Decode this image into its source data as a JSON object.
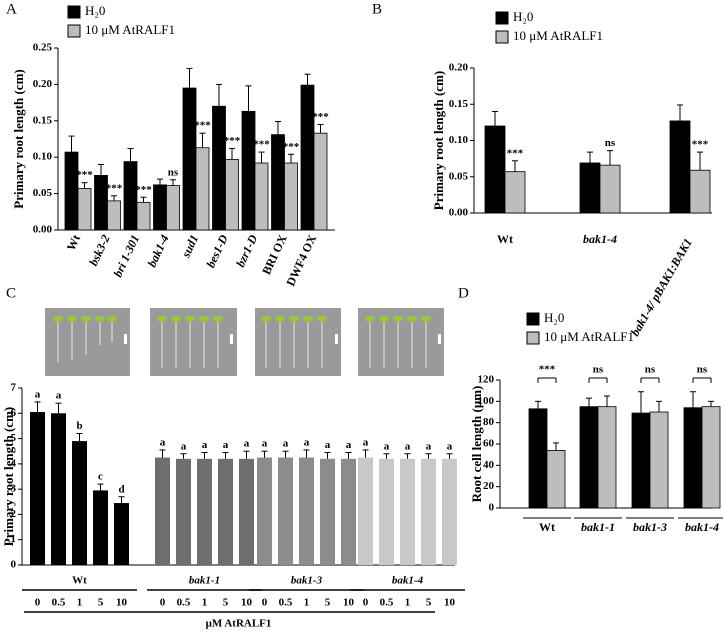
{
  "chart_data": [
    {
      "type": "bar",
      "title": "A",
      "ylabel": "Primary root length (cm)",
      "categories": [
        "Wt",
        "bsk3-2",
        "bri 1-301",
        "bak1-4",
        "sud1",
        "bes1-D",
        "bzr1-D",
        "BRI OX",
        "DWF4 OX"
      ],
      "series": [
        {
          "name": "H₂0",
          "color": "#000000",
          "values": [
            0.107,
            0.075,
            0.094,
            0.062,
            0.195,
            0.17,
            0.163,
            0.131,
            0.199
          ],
          "errors": [
            0.022,
            0.015,
            0.018,
            0.008,
            0.027,
            0.03,
            0.035,
            0.018,
            0.015
          ]
        },
        {
          "name": "10 μM AtRALF1",
          "color": "#bdbdbd",
          "values": [
            0.057,
            0.04,
            0.038,
            0.061,
            0.113,
            0.097,
            0.092,
            0.092,
            0.133
          ],
          "errors": [
            0.008,
            0.007,
            0.007,
            0.008,
            0.02,
            0.015,
            0.015,
            0.012,
            0.012
          ]
        }
      ],
      "annotations": [
        "***",
        "***",
        "***",
        "ns",
        "***",
        "***",
        "***",
        "***",
        "***"
      ],
      "ylim": [
        0,
        0.25
      ],
      "yticks": [
        {
          "value": 0,
          "label": "0.00"
        },
        {
          "value": 0.05,
          "label": "0.05"
        },
        {
          "value": 0.1,
          "label": "0.10"
        },
        {
          "value": 0.15,
          "label": "0.15"
        },
        {
          "value": 0.2,
          "label": "0.20"
        },
        {
          "value": 0.25,
          "label": "0.25"
        }
      ]
    },
    {
      "type": "bar",
      "title": "B",
      "ylabel": "Primary root length (cm)",
      "categories": [
        "Wt",
        "bak1-4",
        "bak1-4/ pBAK1:BAK1"
      ],
      "series": [
        {
          "name": "H₂0",
          "color": "#000000",
          "values": [
            0.12,
            0.069,
            0.127
          ],
          "errors": [
            0.02,
            0.015,
            0.022
          ]
        },
        {
          "name": "10 μM AtRALF1",
          "color": "#bdbdbd",
          "values": [
            0.057,
            0.066,
            0.059
          ],
          "errors": [
            0.015,
            0.02,
            0.025
          ]
        }
      ],
      "annotations": [
        "***",
        "ns",
        "***"
      ],
      "ylim": [
        0,
        0.2
      ],
      "yticks": [
        {
          "value": 0,
          "label": "0.00"
        },
        {
          "value": 0.05,
          "label": "0.05"
        },
        {
          "value": 0.1,
          "label": "0.10"
        },
        {
          "value": 0.15,
          "label": "0.15"
        },
        {
          "value": 0.2,
          "label": "0.20"
        }
      ]
    },
    {
      "type": "groupbar",
      "title": "C",
      "ylabel": "Primary root length (cm)",
      "xlabel": "μM AtRALF1",
      "categories": [
        "0",
        "0.5",
        "1",
        "5",
        "10"
      ],
      "groups": [
        {
          "name": "Wt",
          "color": "#000000",
          "values": [
            6.05,
            6.0,
            4.9,
            2.95,
            2.45
          ],
          "errors": [
            0.4,
            0.4,
            0.3,
            0.25,
            0.25
          ],
          "letters": [
            "a",
            "a",
            "b",
            "c",
            "d"
          ]
        },
        {
          "name": "bak1-1",
          "color": "#6e6e6e",
          "values": [
            4.25,
            4.2,
            4.2,
            4.2,
            4.2
          ],
          "errors": [
            0.3,
            0.2,
            0.25,
            0.25,
            0.3
          ],
          "letters": [
            "a",
            "a",
            "a",
            "a",
            "a"
          ]
        },
        {
          "name": "bak1-3",
          "color": "#8c8c8c",
          "values": [
            4.25,
            4.25,
            4.25,
            4.2,
            4.2
          ],
          "errors": [
            0.25,
            0.25,
            0.3,
            0.25,
            0.25
          ],
          "letters": [
            "a",
            "a",
            "a",
            "a",
            "a"
          ]
        },
        {
          "name": "bak1-4",
          "color": "#c8c8c8",
          "values": [
            4.25,
            4.2,
            4.2,
            4.2,
            4.2
          ],
          "errors": [
            0.3,
            0.2,
            0.2,
            0.2,
            0.2
          ],
          "letters": [
            "a",
            "a",
            "a",
            "a",
            "a"
          ]
        }
      ],
      "ylim": [
        0,
        7
      ],
      "yticks": [
        0,
        1,
        2,
        3,
        4,
        5,
        6,
        7
      ]
    },
    {
      "type": "bar",
      "title": "D",
      "ylabel": "Root cell length (μm)",
      "categories": [
        "Wt",
        "bak1-1",
        "bak1-3",
        "bak1-4"
      ],
      "series": [
        {
          "name": "H₂0",
          "color": "#000000",
          "values": [
            93,
            95,
            89,
            94
          ],
          "errors": [
            7,
            8,
            20,
            15
          ]
        },
        {
          "name": "10 μM AtRALF1",
          "color": "#bdbdbd",
          "values": [
            54,
            95,
            90,
            95
          ],
          "errors": [
            7,
            10,
            10,
            5
          ]
        }
      ],
      "annotations": [
        "***",
        "ns",
        "ns",
        "ns"
      ],
      "ylim": [
        0,
        120
      ],
      "yticks": [
        0,
        20,
        40,
        60,
        80,
        100,
        120
      ]
    }
  ]
}
